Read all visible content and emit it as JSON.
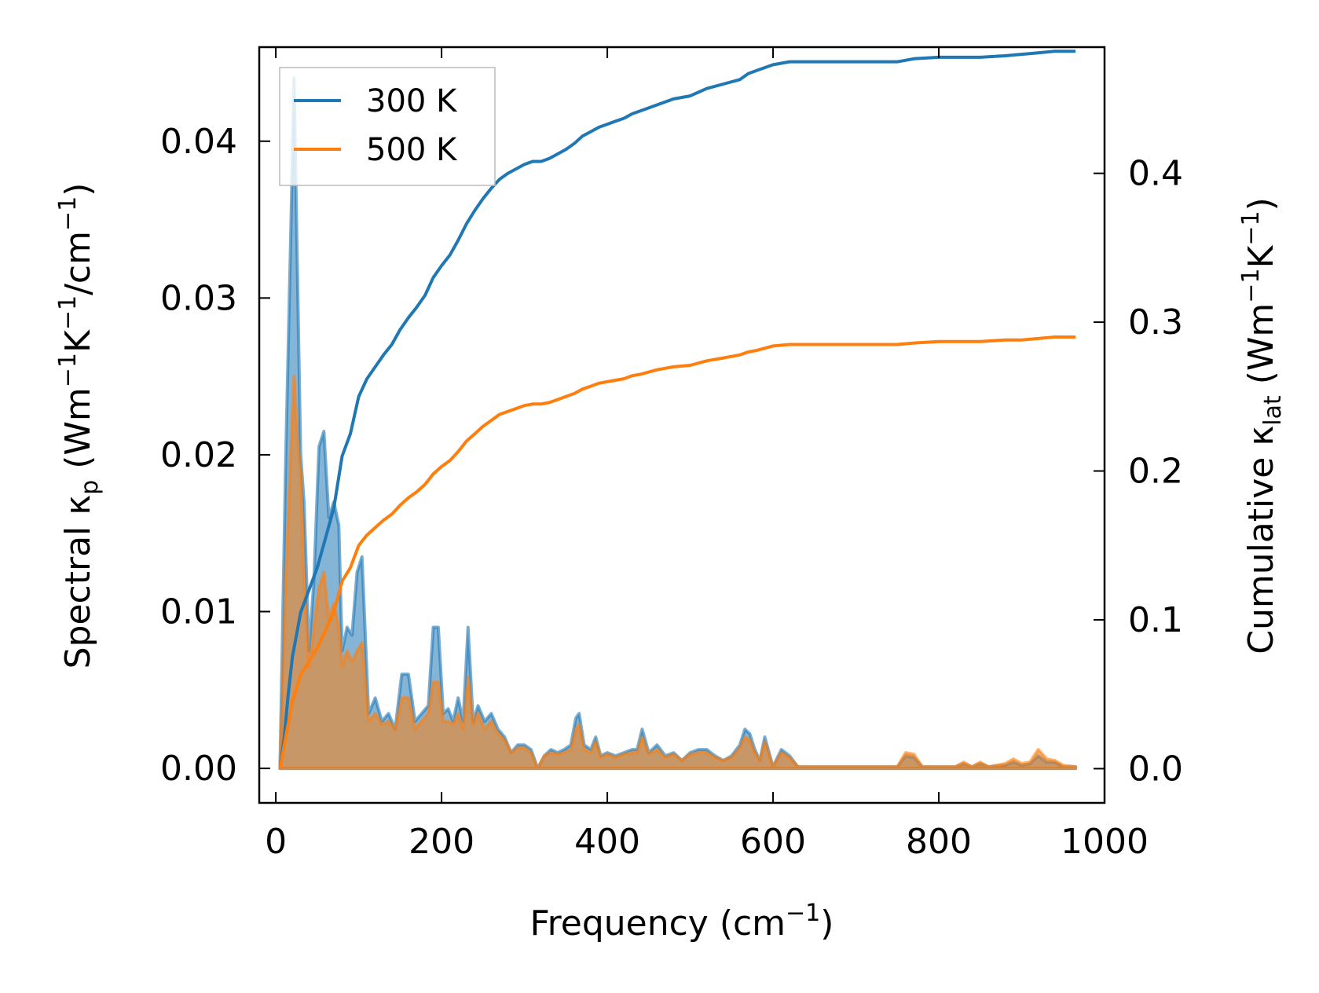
{
  "chart_data": {
    "type": "line",
    "xlabel_main": "Frequency (cm",
    "xlabel_sup": "−1",
    "xlabel_end": ")",
    "ylabel_left": {
      "parts": [
        {
          "t": "Spectral κ",
          "k": "n"
        },
        {
          "t": "p",
          "k": "sub"
        },
        {
          "t": " (Wm",
          "k": "n"
        },
        {
          "t": "−1",
          "k": "sup"
        },
        {
          "t": "K",
          "k": "n"
        },
        {
          "t": "−1",
          "k": "sup"
        },
        {
          "t": "/cm",
          "k": "n"
        },
        {
          "t": "−1",
          "k": "sup"
        },
        {
          "t": ")",
          "k": "n"
        }
      ]
    },
    "ylabel_right": {
      "parts": [
        {
          "t": "Cumulative κ",
          "k": "n"
        },
        {
          "t": "lat",
          "k": "sub"
        },
        {
          "t": " (Wm",
          "k": "n"
        },
        {
          "t": "−1",
          "k": "sup"
        },
        {
          "t": "K",
          "k": "n"
        },
        {
          "t": "−1",
          "k": "sup"
        },
        {
          "t": ")",
          "k": "n"
        }
      ]
    },
    "xlim": [
      -20,
      1000
    ],
    "ylim_left": [
      -0.0022,
      0.046
    ],
    "ylim_right": [
      -0.023,
      0.4848
    ],
    "xticks": [
      0,
      200,
      400,
      600,
      800,
      1000
    ],
    "xtick_labels": [
      "0",
      "200",
      "400",
      "600",
      "800",
      "1000"
    ],
    "yticks_left": [
      0.0,
      0.01,
      0.02,
      0.03,
      0.04
    ],
    "ytick_labels_left": [
      "0.00",
      "0.01",
      "0.02",
      "0.03",
      "0.04"
    ],
    "yticks_right": [
      0.0,
      0.1,
      0.2,
      0.3,
      0.4
    ],
    "ytick_labels_right": [
      "0.0",
      "0.1",
      "0.2",
      "0.3",
      "0.4"
    ],
    "legend": {
      "position": "upper-left"
    },
    "series": [
      {
        "name": "300 K",
        "color": "#1f77b4",
        "cumulative_x": [
          5,
          10,
          15,
          20,
          25,
          30,
          40,
          50,
          60,
          70,
          80,
          90,
          100,
          110,
          120,
          130,
          140,
          150,
          160,
          170,
          180,
          190,
          200,
          210,
          220,
          230,
          240,
          250,
          260,
          270,
          280,
          290,
          300,
          310,
          320,
          330,
          340,
          350,
          360,
          370,
          380,
          390,
          400,
          410,
          420,
          430,
          440,
          460,
          480,
          500,
          520,
          540,
          560,
          570,
          580,
          600,
          620,
          650,
          700,
          750,
          770,
          800,
          850,
          880,
          900,
          920,
          940,
          965
        ],
        "cumulative_y": [
          0.0,
          0.02,
          0.05,
          0.075,
          0.09,
          0.105,
          0.12,
          0.135,
          0.155,
          0.175,
          0.21,
          0.225,
          0.25,
          0.262,
          0.27,
          0.278,
          0.285,
          0.295,
          0.303,
          0.31,
          0.318,
          0.33,
          0.338,
          0.345,
          0.355,
          0.366,
          0.375,
          0.383,
          0.39,
          0.396,
          0.4,
          0.403,
          0.406,
          0.408,
          0.408,
          0.41,
          0.413,
          0.416,
          0.42,
          0.425,
          0.428,
          0.431,
          0.433,
          0.435,
          0.437,
          0.44,
          0.442,
          0.446,
          0.45,
          0.452,
          0.457,
          0.46,
          0.463,
          0.467,
          0.469,
          0.473,
          0.475,
          0.475,
          0.475,
          0.475,
          0.477,
          0.478,
          0.478,
          0.479,
          0.48,
          0.481,
          0.482,
          0.482
        ],
        "spectral_x": [
          5,
          12,
          18,
          22,
          26,
          30,
          34,
          40,
          46,
          52,
          58,
          64,
          70,
          76,
          80,
          86,
          92,
          98,
          104,
          112,
          120,
          128,
          136,
          144,
          152,
          160,
          168,
          176,
          184,
          190,
          196,
          202,
          208,
          214,
          220,
          226,
          232,
          238,
          244,
          252,
          260,
          268,
          276,
          284,
          292,
          300,
          308,
          316,
          324,
          332,
          340,
          348,
          356,
          362,
          366,
          372,
          380,
          386,
          392,
          400,
          410,
          420,
          430,
          436,
          442,
          450,
          460,
          470,
          480,
          490,
          500,
          510,
          520,
          530,
          540,
          550,
          560,
          566,
          572,
          578,
          584,
          590,
          600,
          610,
          620,
          630,
          650,
          700,
          740,
          750,
          760,
          770,
          780,
          800,
          820,
          830,
          840,
          850,
          860,
          880,
          890,
          900,
          910,
          920,
          930,
          940,
          950,
          965
        ],
        "spectral_y": [
          0.0,
          0.02,
          0.034,
          0.044,
          0.032,
          0.02,
          0.017,
          0.0075,
          0.012,
          0.0205,
          0.0215,
          0.016,
          0.017,
          0.0155,
          0.0075,
          0.009,
          0.0085,
          0.0125,
          0.0135,
          0.0035,
          0.0045,
          0.003,
          0.0035,
          0.0025,
          0.006,
          0.006,
          0.003,
          0.0035,
          0.004,
          0.009,
          0.009,
          0.0035,
          0.0038,
          0.003,
          0.0045,
          0.003,
          0.009,
          0.003,
          0.004,
          0.003,
          0.0035,
          0.0025,
          0.002,
          0.001,
          0.0015,
          0.0015,
          0.0012,
          0.0,
          0.0008,
          0.0012,
          0.001,
          0.0012,
          0.0015,
          0.0032,
          0.0035,
          0.0015,
          0.0012,
          0.002,
          0.0008,
          0.001,
          0.0008,
          0.001,
          0.0012,
          0.0012,
          0.0025,
          0.001,
          0.0015,
          0.0008,
          0.001,
          0.0005,
          0.001,
          0.0012,
          0.0012,
          0.0008,
          0.0005,
          0.0008,
          0.0015,
          0.0025,
          0.0022,
          0.0012,
          0.0005,
          0.002,
          0.0001,
          0.0012,
          0.0008,
          0.0001,
          0.0001,
          0.0001,
          0.0001,
          0.0001,
          0.0008,
          0.0007,
          0.0001,
          0.0001,
          0.0001,
          0.0003,
          0.0001,
          0.0003,
          0.0001,
          0.0002,
          0.0004,
          0.0002,
          0.0003,
          0.0008,
          0.0004,
          0.0004,
          0.0001,
          0.0001
        ]
      },
      {
        "name": "500 K",
        "color": "#ff7f0e",
        "cumulative_x": [
          5,
          10,
          15,
          20,
          25,
          30,
          40,
          50,
          60,
          70,
          80,
          90,
          100,
          110,
          120,
          130,
          140,
          150,
          160,
          170,
          180,
          190,
          200,
          210,
          220,
          230,
          240,
          250,
          260,
          270,
          280,
          290,
          300,
          310,
          320,
          330,
          340,
          350,
          360,
          370,
          380,
          390,
          400,
          410,
          420,
          430,
          440,
          460,
          480,
          500,
          520,
          540,
          560,
          570,
          580,
          600,
          620,
          650,
          700,
          750,
          770,
          800,
          850,
          880,
          900,
          920,
          940,
          965
        ],
        "cumulative_y": [
          0.0,
          0.015,
          0.03,
          0.045,
          0.054,
          0.063,
          0.072,
          0.081,
          0.093,
          0.105,
          0.126,
          0.135,
          0.15,
          0.157,
          0.162,
          0.167,
          0.171,
          0.177,
          0.182,
          0.186,
          0.191,
          0.198,
          0.203,
          0.207,
          0.213,
          0.22,
          0.225,
          0.23,
          0.234,
          0.238,
          0.24,
          0.242,
          0.244,
          0.245,
          0.245,
          0.246,
          0.248,
          0.25,
          0.252,
          0.255,
          0.257,
          0.259,
          0.26,
          0.261,
          0.262,
          0.264,
          0.265,
          0.268,
          0.27,
          0.271,
          0.274,
          0.276,
          0.278,
          0.28,
          0.281,
          0.284,
          0.285,
          0.285,
          0.285,
          0.285,
          0.286,
          0.287,
          0.287,
          0.288,
          0.288,
          0.289,
          0.29,
          0.29
        ],
        "spectral_x": [
          5,
          12,
          18,
          22,
          26,
          30,
          34,
          40,
          46,
          52,
          58,
          64,
          70,
          76,
          80,
          86,
          92,
          98,
          104,
          112,
          120,
          128,
          136,
          144,
          152,
          160,
          168,
          176,
          184,
          190,
          196,
          202,
          208,
          214,
          220,
          226,
          232,
          238,
          244,
          252,
          260,
          268,
          276,
          284,
          292,
          300,
          308,
          316,
          324,
          332,
          340,
          348,
          356,
          362,
          366,
          372,
          380,
          386,
          392,
          400,
          410,
          420,
          430,
          436,
          442,
          450,
          460,
          470,
          480,
          490,
          500,
          510,
          520,
          530,
          540,
          550,
          560,
          566,
          572,
          578,
          584,
          590,
          600,
          610,
          620,
          630,
          650,
          700,
          740,
          750,
          760,
          770,
          780,
          800,
          820,
          830,
          840,
          850,
          860,
          880,
          890,
          900,
          910,
          920,
          930,
          940,
          950,
          965
        ],
        "spectral_y": [
          0.0,
          0.012,
          0.02,
          0.025,
          0.021,
          0.019,
          0.012,
          0.0065,
          0.009,
          0.0115,
          0.0125,
          0.0095,
          0.0105,
          0.009,
          0.0065,
          0.0075,
          0.0068,
          0.0075,
          0.008,
          0.003,
          0.0035,
          0.0028,
          0.003,
          0.0025,
          0.0045,
          0.0045,
          0.0025,
          0.003,
          0.0035,
          0.0055,
          0.0055,
          0.003,
          0.003,
          0.0028,
          0.0035,
          0.0025,
          0.0058,
          0.0028,
          0.0035,
          0.0025,
          0.003,
          0.0022,
          0.0018,
          0.001,
          0.0013,
          0.0013,
          0.001,
          0.0,
          0.0008,
          0.001,
          0.0009,
          0.001,
          0.0012,
          0.0025,
          0.0028,
          0.0012,
          0.001,
          0.0017,
          0.0007,
          0.0009,
          0.0007,
          0.0009,
          0.001,
          0.001,
          0.002,
          0.0009,
          0.0012,
          0.0007,
          0.0009,
          0.0005,
          0.0009,
          0.001,
          0.001,
          0.0007,
          0.0005,
          0.0007,
          0.0013,
          0.002,
          0.0018,
          0.001,
          0.0005,
          0.0017,
          0.0001,
          0.001,
          0.0007,
          0.0001,
          0.0001,
          0.0001,
          0.0001,
          0.0001,
          0.001,
          0.0009,
          0.0001,
          0.0001,
          0.0001,
          0.0004,
          0.0001,
          0.0004,
          0.0001,
          0.0003,
          0.0006,
          0.0003,
          0.0004,
          0.0012,
          0.0006,
          0.0005,
          0.0002,
          0.0001
        ]
      }
    ]
  }
}
